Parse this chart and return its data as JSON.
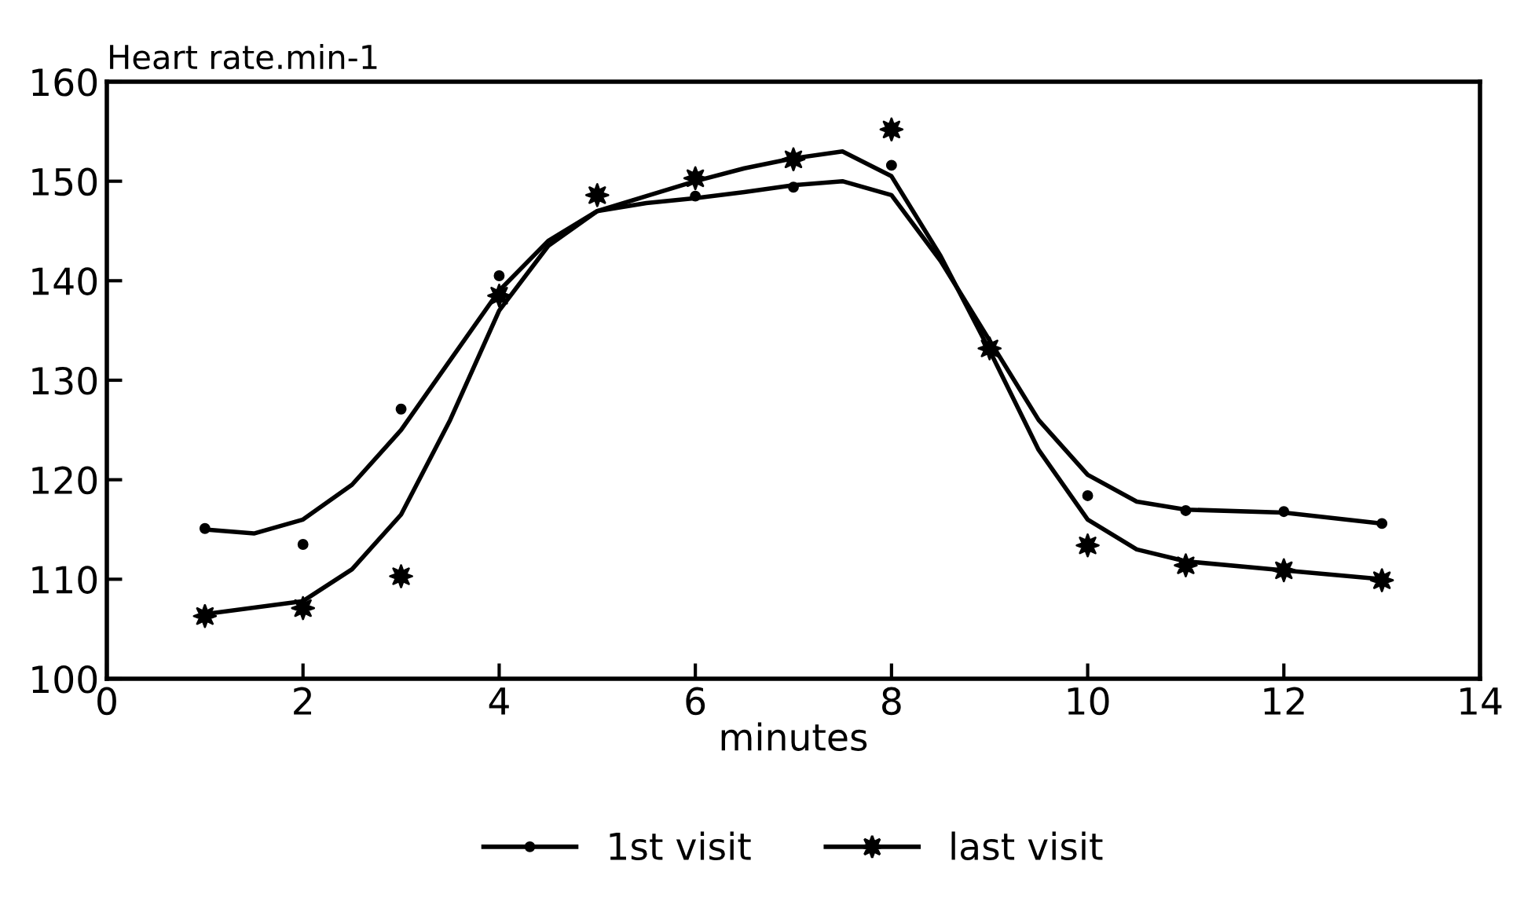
{
  "chart_data": {
    "type": "scatter",
    "ylabel": "Heart rate.min-1",
    "xlabel": "minutes",
    "xlim": [
      0,
      14
    ],
    "ylim": [
      100,
      160
    ],
    "xticks": [
      0,
      2,
      4,
      6,
      8,
      10,
      12,
      14
    ],
    "yticks": [
      100,
      110,
      120,
      130,
      140,
      150,
      160
    ],
    "grid": false,
    "legend": "bottom",
    "x": [
      1,
      2,
      3,
      4,
      5,
      6,
      7,
      8,
      9,
      10,
      11,
      12,
      13
    ],
    "series": [
      {
        "name": "1st visit",
        "marker": "circle",
        "color": "#000000",
        "values": [
          115.1,
          113.5,
          127.1,
          140.5,
          null,
          148.5,
          149.4,
          151.6,
          null,
          118.4,
          116.9,
          116.8,
          115.6
        ]
      },
      {
        "name": "last visit",
        "marker": "star",
        "color": "#000000",
        "values": [
          106.3,
          107.1,
          110.3,
          138.5,
          148.6,
          150.3,
          152.2,
          155.2,
          133.2,
          113.4,
          111.4,
          110.9,
          109.9
        ]
      },
      {
        "type": "line",
        "marker": "none",
        "color": "#000000",
        "x": [
          1,
          1.5,
          2,
          2.5,
          3,
          3.5,
          4,
          4.5,
          5,
          5.5,
          6,
          6.5,
          7,
          7.5,
          8,
          8.5,
          9,
          9.5,
          10,
          10.5,
          11,
          12,
          13
        ],
        "values": [
          115,
          114.6,
          116,
          119.5,
          125,
          132,
          139,
          144,
          147,
          147.8,
          148.3,
          148.9,
          149.6,
          150,
          148.6,
          142,
          134,
          126,
          120.5,
          117.8,
          117,
          116.7,
          115.6
        ]
      },
      {
        "type": "line",
        "marker": "none",
        "color": "#000000",
        "x": [
          1,
          2,
          2.5,
          3,
          3.5,
          4,
          4.5,
          5,
          5.5,
          6,
          6.5,
          7,
          7.5,
          8,
          8.5,
          9,
          9.5,
          10,
          10.5,
          11,
          12,
          13
        ],
        "values": [
          106.5,
          107.8,
          111,
          116.5,
          126,
          137,
          143.5,
          147,
          148.5,
          150,
          151.3,
          152.3,
          153,
          150.5,
          142.5,
          133,
          123,
          116,
          113,
          111.8,
          110.9,
          110
        ]
      }
    ]
  }
}
